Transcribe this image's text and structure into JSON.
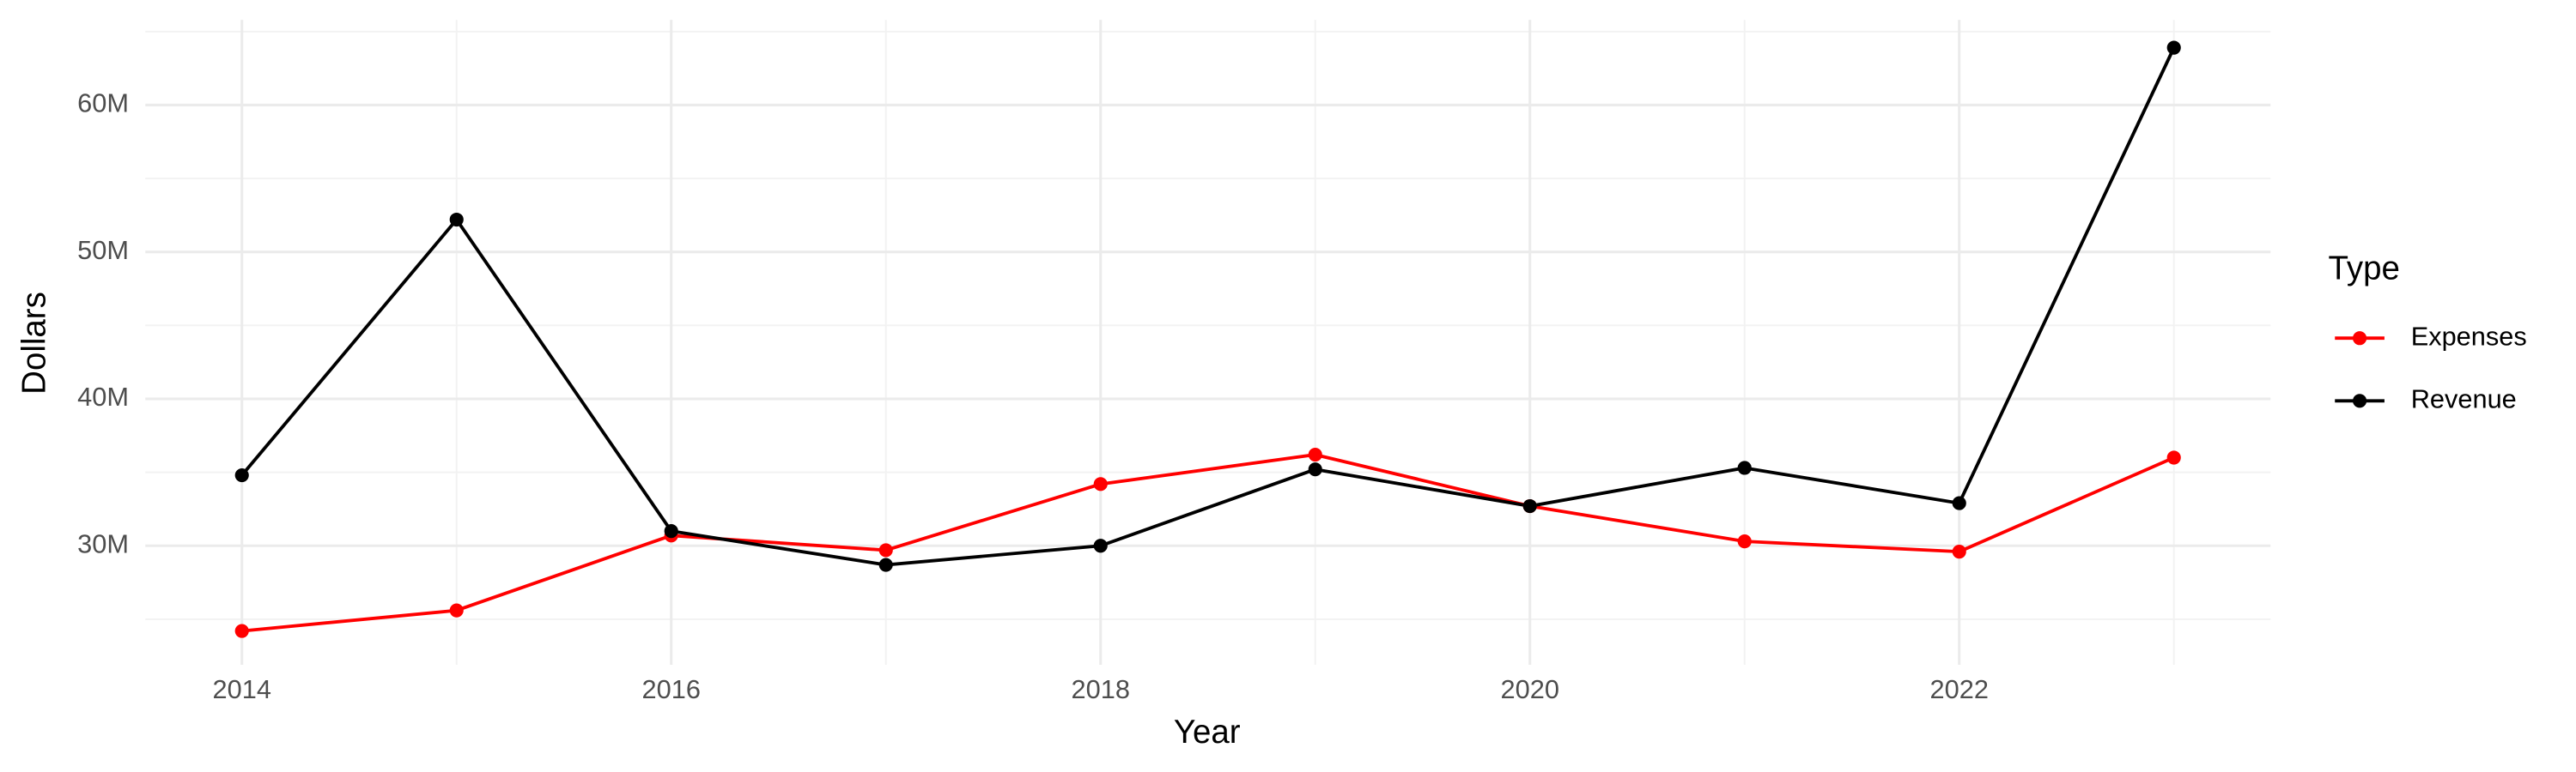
{
  "chart_data": {
    "type": "line",
    "x_label": "Year",
    "y_label": "Dollars",
    "legend_title": "Type",
    "x": [
      2014,
      2015,
      2016,
      2017,
      2018,
      2019,
      2020,
      2021,
      2022,
      2023
    ],
    "series": [
      {
        "name": "Expenses",
        "color": "#ff0000",
        "values": [
          24200000,
          25600000,
          30700000,
          29700000,
          34200000,
          36200000,
          32700000,
          30300000,
          29600000,
          36000000
        ]
      },
      {
        "name": "Revenue",
        "color": "#000000",
        "values": [
          34800000,
          52200000,
          31000000,
          28700000,
          30000000,
          35200000,
          32700000,
          35300000,
          32900000,
          63900000
        ]
      }
    ],
    "xlim": [
      2013.55,
      2023.45
    ],
    "xticks": [
      2014,
      2016,
      2018,
      2020,
      2022
    ],
    "ylim": [
      21900000,
      65800000
    ],
    "yticks": [
      {
        "value": 30000000,
        "label": "30M"
      },
      {
        "value": 40000000,
        "label": "40M"
      },
      {
        "value": 50000000,
        "label": "50M"
      },
      {
        "value": 60000000,
        "label": "60M"
      }
    ],
    "grid": true,
    "legend": "right"
  }
}
